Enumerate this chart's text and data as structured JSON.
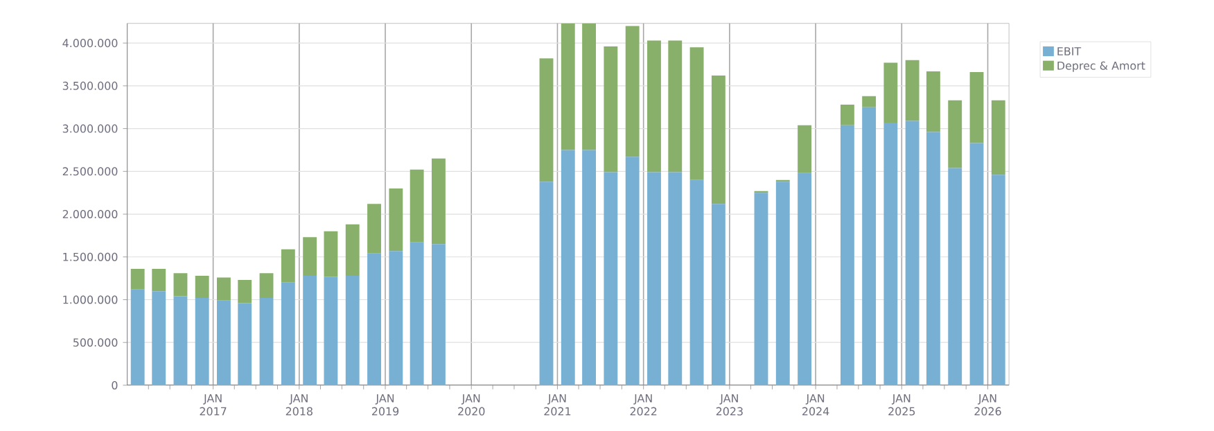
{
  "chart_data": {
    "type": "bar",
    "stacked": true,
    "x": [
      "2016-02-15",
      "2016-05-15",
      "2016-08-15",
      "2016-11-15",
      "2017-02-15",
      "2017-05-15",
      "2017-08-15",
      "2017-11-15",
      "2018-02-15",
      "2018-05-15",
      "2018-08-15",
      "2018-11-15",
      "2019-02-15",
      "2019-05-15",
      "2019-08-15",
      "2019-11-15",
      "2020-02-15",
      "2020-05-15",
      "2020-08-15",
      "2020-11-15",
      "2021-02-15",
      "2021-05-15",
      "2021-08-15",
      "2021-11-15",
      "2022-02-15",
      "2022-05-15",
      "2022-08-15",
      "2022-11-15",
      "2023-02-15",
      "2023-05-15",
      "2023-08-15",
      "2023-11-15",
      "2024-02-15",
      "2024-05-15",
      "2024-08-15",
      "2024-11-15",
      "2025-02-15",
      "2025-05-15",
      "2025-08-15",
      "2025-11-15",
      "2026-02-15"
    ],
    "series": [
      {
        "name": "EBIT",
        "color": "#78b0d4",
        "values": [
          1120000,
          1100000,
          1040000,
          1020000,
          990000,
          960000,
          1020000,
          1200000,
          1280000,
          1270000,
          1280000,
          1540000,
          1570000,
          1670000,
          1650000,
          null,
          null,
          null,
          null,
          2380000,
          2750000,
          2750000,
          2490000,
          2670000,
          2490000,
          2490000,
          2400000,
          2120000,
          null,
          2250000,
          2380000,
          2480000,
          null,
          3040000,
          3250000,
          3070000,
          3090000,
          2960000,
          2540000,
          2830000,
          2460000
        ]
      },
      {
        "name": "Deprec & Amort",
        "color": "#88b06a",
        "values": [
          240000,
          260000,
          270000,
          260000,
          270000,
          270000,
          290000,
          390000,
          450000,
          530000,
          600000,
          580000,
          730000,
          850000,
          1000000,
          null,
          null,
          null,
          null,
          1440000,
          1480000,
          1480000,
          1470000,
          1530000,
          1540000,
          1540000,
          1550000,
          1500000,
          null,
          20000,
          20000,
          560000,
          null,
          240000,
          130000,
          700000,
          710000,
          710000,
          790000,
          830000,
          870000
        ]
      }
    ],
    "xlim": [
      "2016-01-01",
      "2026-04-01"
    ],
    "xticks": [
      {
        "value": "2016-04-01",
        "label": null
      },
      {
        "value": "2016-07-01",
        "label": null
      },
      {
        "value": "2016-10-01",
        "label": null
      },
      {
        "value": "2017-01-01",
        "label": "JAN 2017"
      },
      {
        "value": "2017-04-01",
        "label": null
      },
      {
        "value": "2017-07-01",
        "label": null
      },
      {
        "value": "2017-10-01",
        "label": null
      },
      {
        "value": "2018-01-01",
        "label": "JAN 2018"
      },
      {
        "value": "2018-04-01",
        "label": null
      },
      {
        "value": "2018-07-01",
        "label": null
      },
      {
        "value": "2018-10-01",
        "label": null
      },
      {
        "value": "2019-01-01",
        "label": "JAN 2019"
      },
      {
        "value": "2019-04-01",
        "label": null
      },
      {
        "value": "2019-07-01",
        "label": null
      },
      {
        "value": "2019-10-01",
        "label": null
      },
      {
        "value": "2020-01-01",
        "label": "JAN 2020"
      },
      {
        "value": "2020-04-01",
        "label": null
      },
      {
        "value": "2020-07-01",
        "label": null
      },
      {
        "value": "2020-10-01",
        "label": null
      },
      {
        "value": "2021-01-01",
        "label": "JAN 2021"
      },
      {
        "value": "2021-04-01",
        "label": null
      },
      {
        "value": "2021-07-01",
        "label": null
      },
      {
        "value": "2021-10-01",
        "label": null
      },
      {
        "value": "2022-01-01",
        "label": "JAN 2022"
      },
      {
        "value": "2022-04-01",
        "label": null
      },
      {
        "value": "2022-07-01",
        "label": null
      },
      {
        "value": "2022-10-01",
        "label": null
      },
      {
        "value": "2023-01-01",
        "label": "JAN 2023"
      },
      {
        "value": "2023-04-01",
        "label": null
      },
      {
        "value": "2023-07-01",
        "label": null
      },
      {
        "value": "2023-10-01",
        "label": null
      },
      {
        "value": "2024-01-01",
        "label": "JAN 2024"
      },
      {
        "value": "2024-04-01",
        "label": null
      },
      {
        "value": "2024-07-01",
        "label": null
      },
      {
        "value": "2024-10-01",
        "label": null
      },
      {
        "value": "2025-01-01",
        "label": "JAN 2025"
      },
      {
        "value": "2025-04-01",
        "label": null
      },
      {
        "value": "2025-07-01",
        "label": null
      },
      {
        "value": "2025-10-01",
        "label": null
      },
      {
        "value": "2026-01-01",
        "label": "JAN 2026"
      }
    ],
    "ylim": [
      0,
      4230000
    ],
    "yticks": [
      0,
      {
        "value": 500000,
        "label": "500.000"
      },
      {
        "value": 1000000,
        "label": "1.000.000"
      },
      {
        "value": 1500000,
        "label": "1.500.000"
      },
      {
        "value": 2000000,
        "label": "2.000.000"
      },
      {
        "value": 2500000,
        "label": "2.500.000"
      },
      {
        "value": 3000000,
        "label": "3.000.000"
      },
      {
        "value": 3500000,
        "label": "3.500.000"
      },
      {
        "value": 4000000,
        "label": "4.000.000"
      }
    ],
    "grid": true,
    "legend": "top right"
  }
}
